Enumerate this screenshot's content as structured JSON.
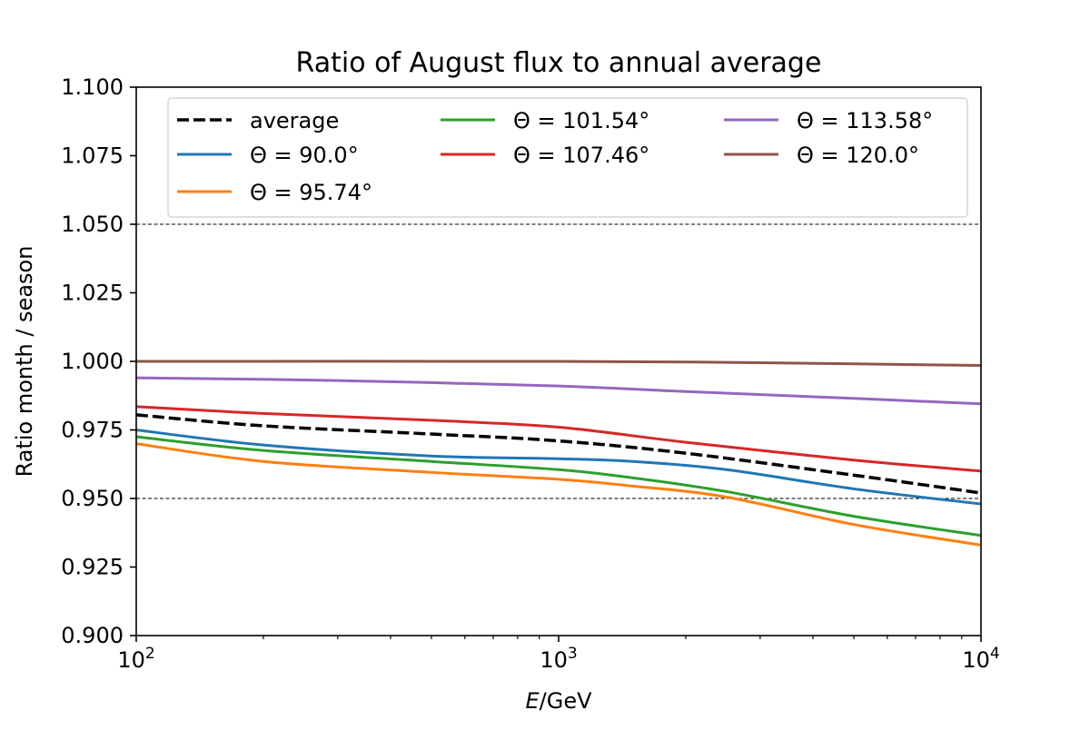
{
  "chart_data": {
    "type": "line",
    "title": "Ratio of August flux to annual average",
    "xlabel": "E/GeV",
    "xlabel_italic": "E",
    "xlabel_rest": "/GeV",
    "ylabel": "Ratio month / season",
    "xscale": "log",
    "xlim": [
      100,
      10000
    ],
    "ylim": [
      0.9,
      1.1
    ],
    "xticks": [
      {
        "value": 100,
        "base": "10",
        "exp": "2"
      },
      {
        "value": 1000,
        "base": "10",
        "exp": "3"
      },
      {
        "value": 10000,
        "base": "10",
        "exp": "4"
      }
    ],
    "yticks": [
      {
        "value": 0.9,
        "label": "0.900"
      },
      {
        "value": 0.925,
        "label": "0.925"
      },
      {
        "value": 0.95,
        "label": "0.950"
      },
      {
        "value": 0.975,
        "label": "0.975"
      },
      {
        "value": 1.0,
        "label": "1.000"
      },
      {
        "value": 1.025,
        "label": "1.025"
      },
      {
        "value": 1.05,
        "label": "1.050"
      },
      {
        "value": 1.075,
        "label": "1.075"
      },
      {
        "value": 1.1,
        "label": "1.100"
      }
    ],
    "reference_lines": [
      0.95,
      1.05
    ],
    "legend_position": "top",
    "series": [
      {
        "name": "average",
        "color": "#000000",
        "dashed": true,
        "x": [
          100,
          200,
          500,
          1000,
          2000,
          5000,
          10000
        ],
        "y": [
          0.9805,
          0.9765,
          0.9735,
          0.971,
          0.9665,
          0.9585,
          0.952
        ]
      },
      {
        "name": "Θ =  90.0°",
        "color": "#1f77b4",
        "dashed": false,
        "x": [
          100,
          200,
          500,
          1000,
          1500,
          2500,
          5000,
          10000
        ],
        "y": [
          0.975,
          0.9695,
          0.9655,
          0.9645,
          0.9635,
          0.9605,
          0.9535,
          0.948
        ]
      },
      {
        "name": "Θ =  95.74°",
        "color": "#ff7f0e",
        "dashed": false,
        "x": [
          100,
          200,
          500,
          1000,
          1500,
          2500,
          5000,
          10000
        ],
        "y": [
          0.97,
          0.9635,
          0.9595,
          0.957,
          0.9545,
          0.9505,
          0.9405,
          0.933
        ]
      },
      {
        "name": "Θ =  101.54°",
        "color": "#2ca02c",
        "dashed": false,
        "x": [
          100,
          200,
          500,
          1000,
          1500,
          2500,
          5000,
          10000
        ],
        "y": [
          0.9725,
          0.9675,
          0.9635,
          0.9605,
          0.9575,
          0.9525,
          0.9435,
          0.9365
        ]
      },
      {
        "name": "Θ =  107.46°",
        "color": "#d62728",
        "dashed": false,
        "x": [
          100,
          200,
          500,
          1000,
          2000,
          5000,
          10000
        ],
        "y": [
          0.9835,
          0.981,
          0.9785,
          0.976,
          0.9705,
          0.964,
          0.96
        ]
      },
      {
        "name": "Θ =  113.58°",
        "color": "#9467bd",
        "dashed": false,
        "x": [
          100,
          300,
          1000,
          2000,
          5000,
          10000
        ],
        "y": [
          0.994,
          0.993,
          0.991,
          0.989,
          0.9865,
          0.9845
        ]
      },
      {
        "name": "Θ =  120.0°",
        "color": "#8c564b",
        "dashed": false,
        "x": [
          100,
          1000,
          3000,
          10000
        ],
        "y": [
          1.0,
          1.0,
          0.9995,
          0.9985
        ]
      }
    ]
  }
}
